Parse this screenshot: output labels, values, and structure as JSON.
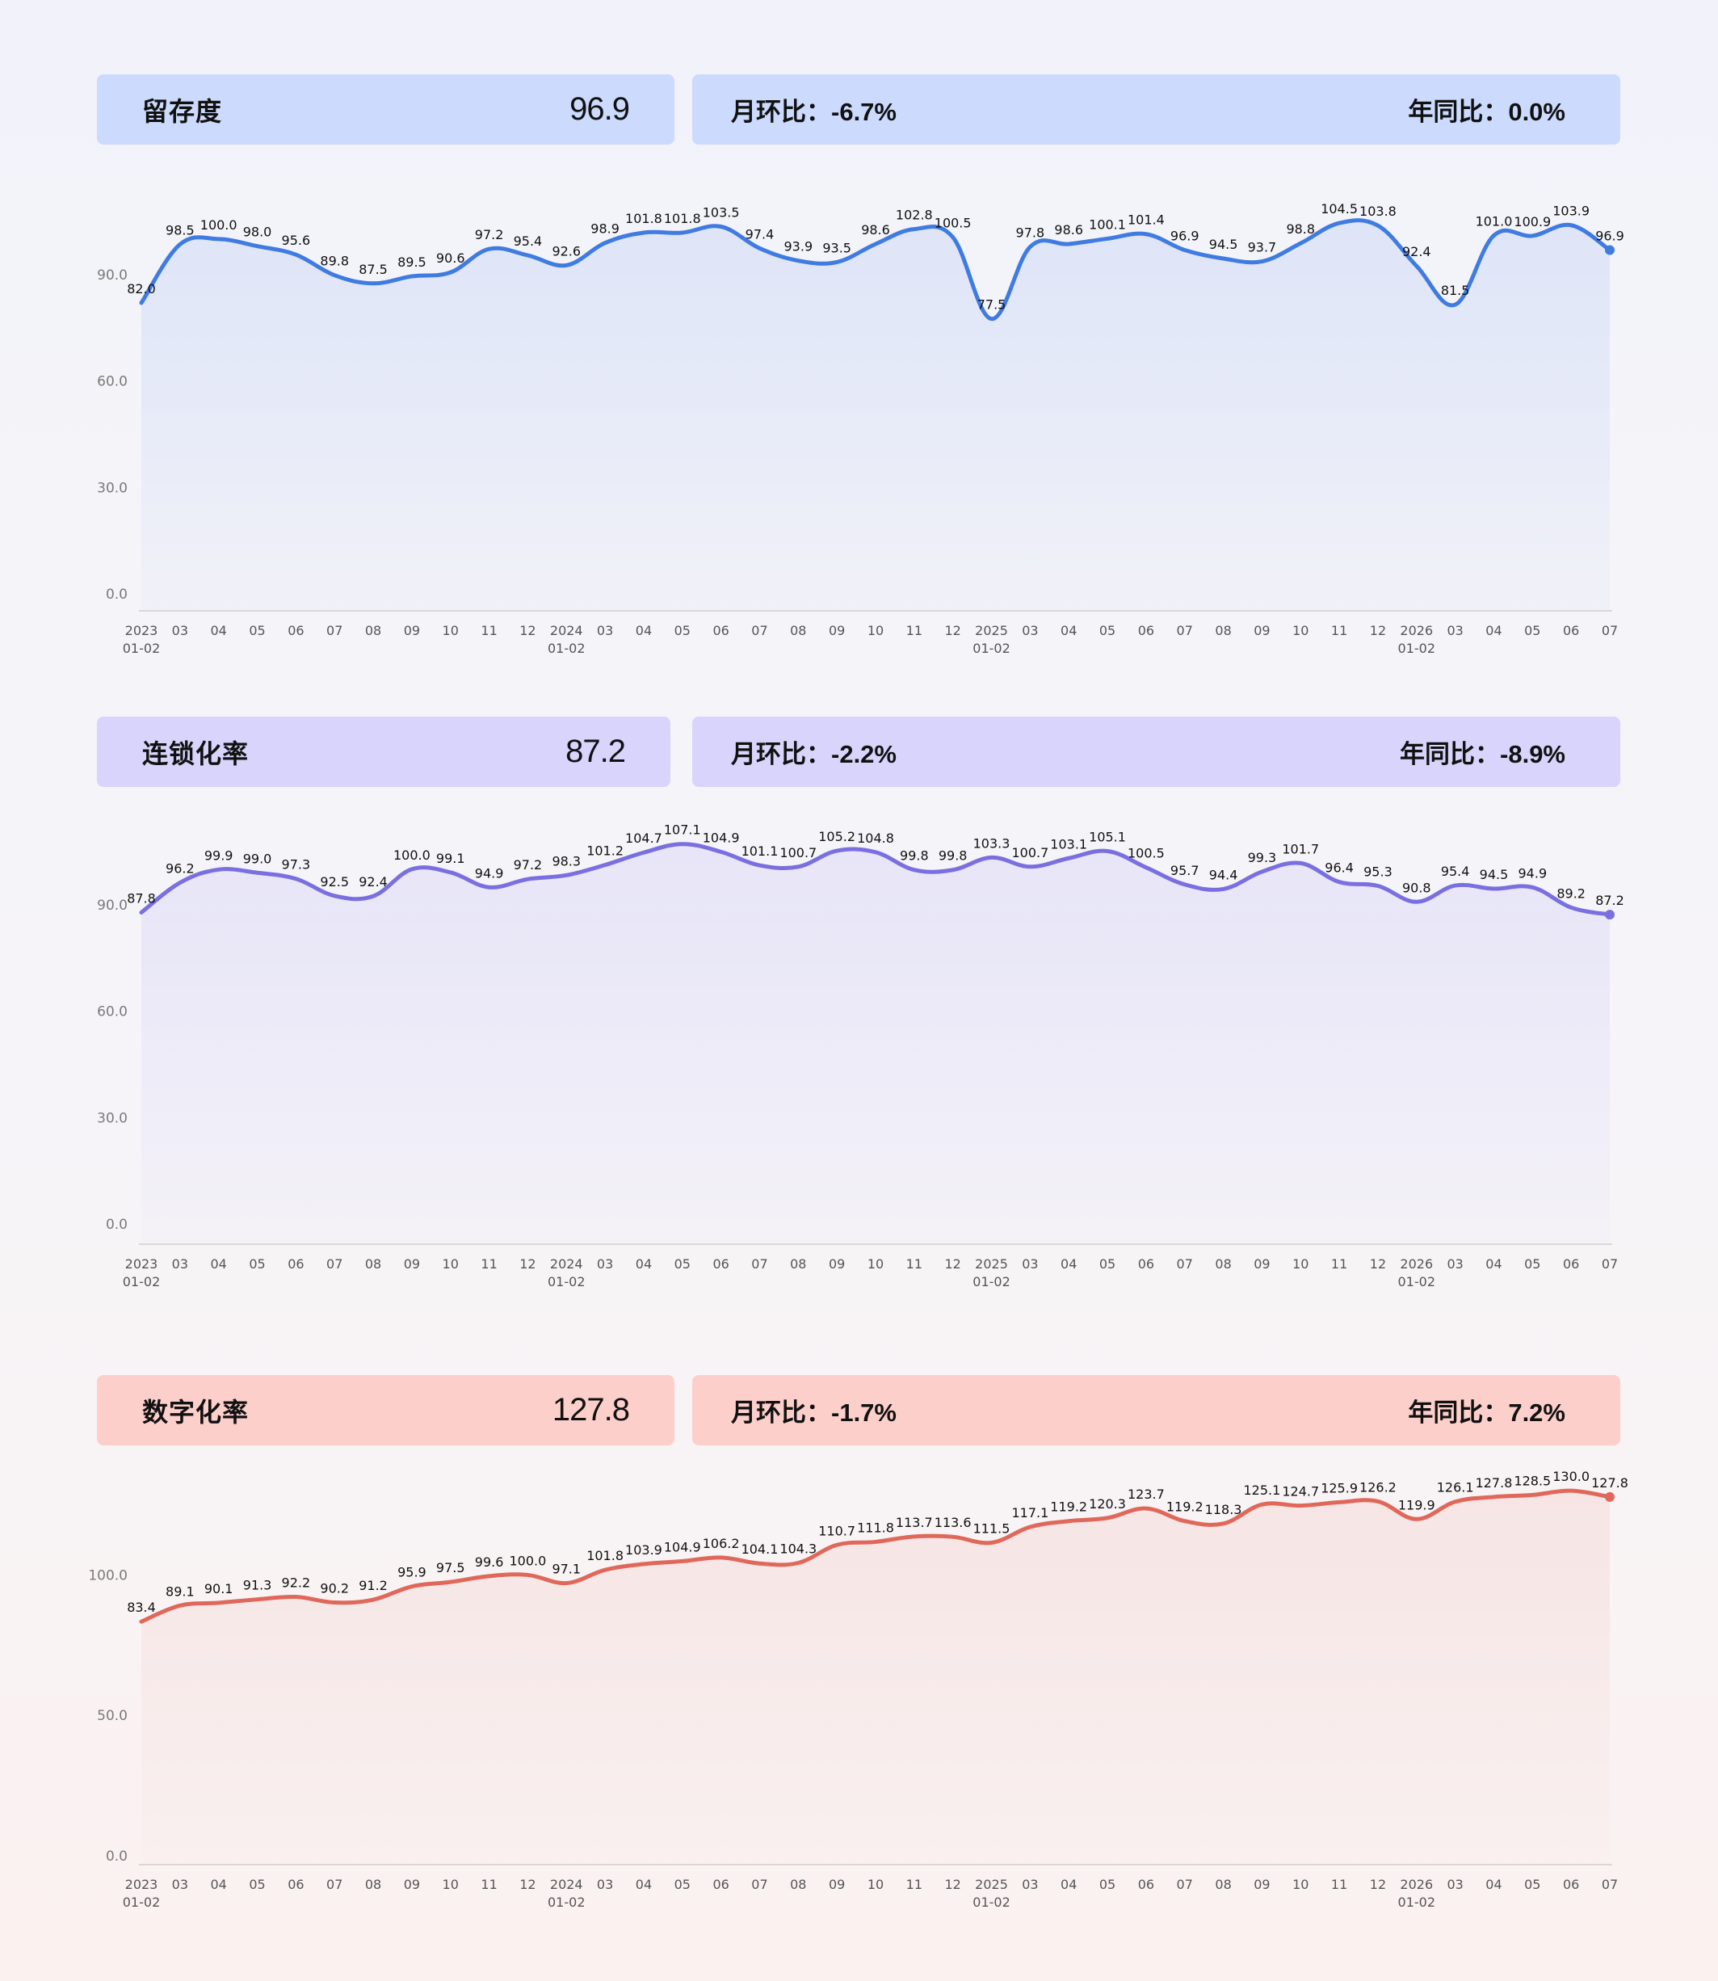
{
  "panels": [
    {
      "metric": "留存度",
      "value": "96.9",
      "mom_label": "月环比：",
      "mom": "-6.7%",
      "yoy_label": "年同比：",
      "yoy": "0.0%",
      "colors": {
        "card": "#cbdafd",
        "line": "#3f7be0",
        "fill": "#dde4f7"
      }
    },
    {
      "metric": "连锁化率",
      "value": "87.2",
      "mom_label": "月环比：",
      "mom": "-2.2%",
      "yoy_label": "年同比：",
      "yoy": "-8.9%",
      "colors": {
        "card": "#d8d4fb",
        "line": "#7a6fe0",
        "fill": "#e6e4f7"
      }
    },
    {
      "metric": "数字化率",
      "value": "127.8",
      "mom_label": "月环比：",
      "mom": "-1.7%",
      "yoy_label": "年同比：",
      "yoy": "7.2%",
      "colors": {
        "card": "#fdcfcb",
        "line": "#e0685a",
        "fill": "#f6e4e3"
      }
    }
  ],
  "chart_data": [
    {
      "type": "area",
      "x": [
        "2023\n01-02",
        "03",
        "04",
        "05",
        "06",
        "07",
        "08",
        "09",
        "10",
        "11",
        "12",
        "2024\n01-02",
        "03",
        "04",
        "05",
        "06",
        "07",
        "08",
        "09",
        "10",
        "11",
        "12",
        "2025\n01-02",
        "03",
        "04",
        "05",
        "06",
        "07",
        "08",
        "09",
        "10",
        "11",
        "12",
        "2026\n01-02",
        "03",
        "04",
        "05",
        "06",
        "07"
      ],
      "values": [
        82.0,
        98.5,
        100.0,
        98.0,
        95.6,
        89.8,
        87.5,
        89.5,
        90.6,
        97.2,
        95.4,
        92.6,
        98.9,
        101.8,
        101.8,
        103.5,
        97.4,
        93.9,
        93.5,
        98.6,
        102.8,
        100.5,
        77.5,
        97.8,
        98.6,
        100.1,
        101.4,
        96.9,
        94.5,
        93.7,
        98.8,
        104.5,
        103.8,
        92.4,
        81.5,
        101.0,
        100.9,
        103.9,
        96.9
      ],
      "yticks": [
        0.0,
        30.0,
        60.0,
        90.0
      ],
      "ylim": [
        0,
        115
      ]
    },
    {
      "type": "area",
      "x": [
        "2023\n01-02",
        "03",
        "04",
        "05",
        "06",
        "07",
        "08",
        "09",
        "10",
        "11",
        "12",
        "2024\n01-02",
        "03",
        "04",
        "05",
        "06",
        "07",
        "08",
        "09",
        "10",
        "11",
        "12",
        "2025\n01-02",
        "03",
        "04",
        "05",
        "06",
        "07",
        "08",
        "09",
        "10",
        "11",
        "12",
        "2026\n01-02",
        "03",
        "04",
        "05",
        "06",
        "07"
      ],
      "values": [
        87.8,
        96.2,
        99.9,
        99.0,
        97.3,
        92.5,
        92.4,
        100.0,
        99.1,
        94.9,
        97.2,
        98.3,
        101.2,
        104.7,
        107.1,
        104.9,
        101.1,
        100.7,
        105.2,
        104.8,
        99.8,
        99.8,
        103.3,
        100.7,
        103.1,
        105.1,
        100.5,
        95.7,
        94.4,
        99.3,
        101.7,
        96.4,
        95.3,
        90.8,
        95.4,
        94.5,
        94.9,
        89.2,
        87.2
      ],
      "yticks": [
        0.0,
        30.0,
        60.0,
        90.0
      ],
      "ylim": [
        0,
        115
      ]
    },
    {
      "type": "area",
      "x": [
        "2023\n01-02",
        "03",
        "04",
        "05",
        "06",
        "07",
        "08",
        "09",
        "10",
        "11",
        "12",
        "2024\n01-02",
        "03",
        "04",
        "05",
        "06",
        "07",
        "08",
        "09",
        "10",
        "11",
        "12",
        "2025\n01-02",
        "03",
        "04",
        "05",
        "06",
        "07",
        "08",
        "09",
        "10",
        "11",
        "12",
        "2026\n01-02",
        "03",
        "04",
        "05",
        "06",
        "07"
      ],
      "values": [
        83.4,
        89.1,
        90.1,
        91.3,
        92.2,
        90.2,
        91.2,
        95.9,
        97.5,
        99.6,
        100.0,
        97.1,
        101.8,
        103.9,
        104.9,
        106.2,
        104.1,
        104.3,
        110.7,
        111.8,
        113.7,
        113.6,
        111.5,
        117.1,
        119.2,
        120.3,
        123.7,
        119.2,
        118.3,
        125.1,
        124.7,
        125.9,
        126.2,
        119.9,
        126.1,
        127.8,
        128.5,
        130.0,
        127.8
      ],
      "yticks": [
        0.0,
        50.0,
        100.0
      ],
      "ylim": [
        0,
        143
      ]
    }
  ]
}
